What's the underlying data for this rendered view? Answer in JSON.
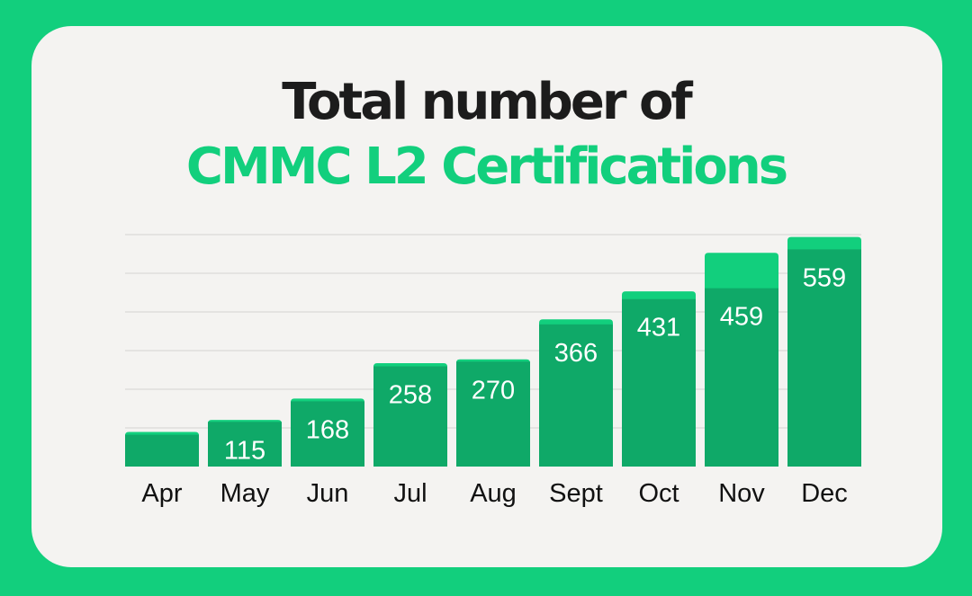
{
  "colors": {
    "background": "#12cf7d",
    "card": "#f4f3f1",
    "bar_base": "#0fa968",
    "bar_top": "#12cf7d",
    "gridline": "#d3d3d1",
    "title_dark": "#1c1c1c",
    "title_accent": "#12cf7d",
    "label_inside": "#ffffff",
    "axis_label": "#111111"
  },
  "title": {
    "line1": "Total number of",
    "line2": "CMMC L2 Certifications"
  },
  "chart_data": {
    "type": "bar",
    "categories": [
      "Apr",
      "May",
      "Jun",
      "Jul",
      "Aug",
      "Sept",
      "Oct",
      "Nov",
      "Dec"
    ],
    "values": [
      82,
      115,
      168,
      258,
      270,
      366,
      431,
      459,
      559
    ],
    "value_labels": [
      "",
      "115",
      "168",
      "258",
      "270",
      "366",
      "431",
      "459",
      "559"
    ],
    "bar_totals": [
      89,
      120,
      175,
      266,
      276,
      379,
      451,
      550,
      591
    ],
    "title": "Total number of CMMC L2 Certifications",
    "xlabel": "",
    "ylabel": "",
    "ylim": [
      0,
      600
    ],
    "grid": true,
    "legend": "none"
  }
}
